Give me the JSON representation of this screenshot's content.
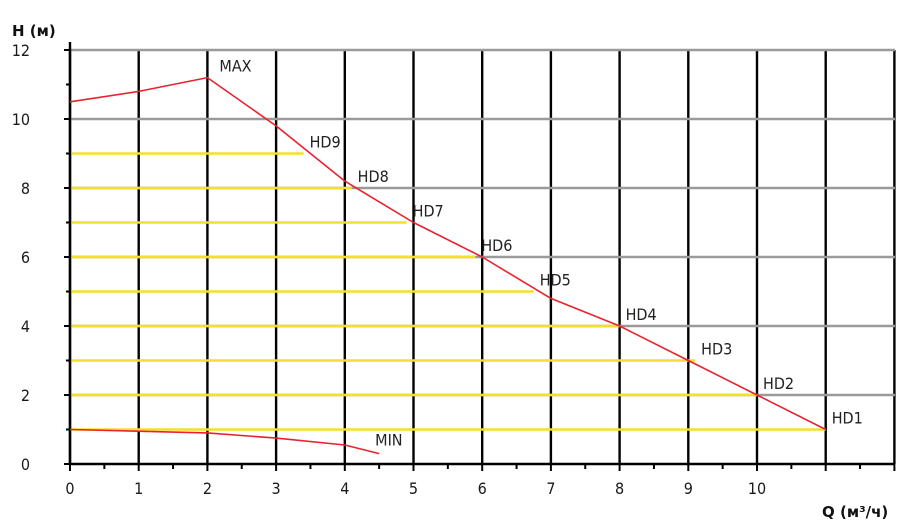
{
  "chart_data": {
    "type": "line",
    "xlabel": "Q (м³/ч)",
    "ylabel": "H (м)",
    "xlim": [
      0,
      12
    ],
    "ylim": [
      0,
      12
    ],
    "x_ticks": [
      0,
      1,
      2,
      3,
      4,
      5,
      6,
      7,
      8,
      9,
      10
    ],
    "y_ticks": [
      0,
      2,
      4,
      6,
      8,
      10,
      12
    ],
    "grid": true,
    "colors": {
      "curve": "#e8232f",
      "hd_line": "#f2e02a",
      "grid_major": "#000000",
      "grid_horizontal": "#9a9a9a"
    },
    "series": [
      {
        "name": "MAX",
        "points": [
          [
            0,
            10.5
          ],
          [
            1,
            10.8
          ],
          [
            2,
            11.2
          ],
          [
            3,
            9.8
          ],
          [
            4,
            8.2
          ],
          [
            5,
            7.0
          ],
          [
            6,
            6.0
          ],
          [
            7,
            4.8
          ],
          [
            8,
            4.0
          ],
          [
            9,
            3.0
          ],
          [
            10,
            2.0
          ],
          [
            11,
            1.0
          ]
        ]
      },
      {
        "name": "MIN",
        "points": [
          [
            0,
            1.0
          ],
          [
            2,
            0.9
          ],
          [
            3,
            0.75
          ],
          [
            4,
            0.55
          ],
          [
            4.5,
            0.3
          ]
        ]
      }
    ],
    "hd_levels": [
      {
        "name": "HD9",
        "h": 9,
        "q": 3.4
      },
      {
        "name": "HD8",
        "h": 8,
        "q": 4.1
      },
      {
        "name": "HD7",
        "h": 7,
        "q": 4.9
      },
      {
        "name": "HD6",
        "h": 6,
        "q": 5.9
      },
      {
        "name": "HD5",
        "h": 5,
        "q": 6.75
      },
      {
        "name": "HD4",
        "h": 4,
        "q": 8.0
      },
      {
        "name": "HD3",
        "h": 3,
        "q": 9.1
      },
      {
        "name": "HD2",
        "h": 2,
        "q": 10.0
      },
      {
        "name": "HD1",
        "h": 1,
        "q": 11.0
      }
    ]
  }
}
